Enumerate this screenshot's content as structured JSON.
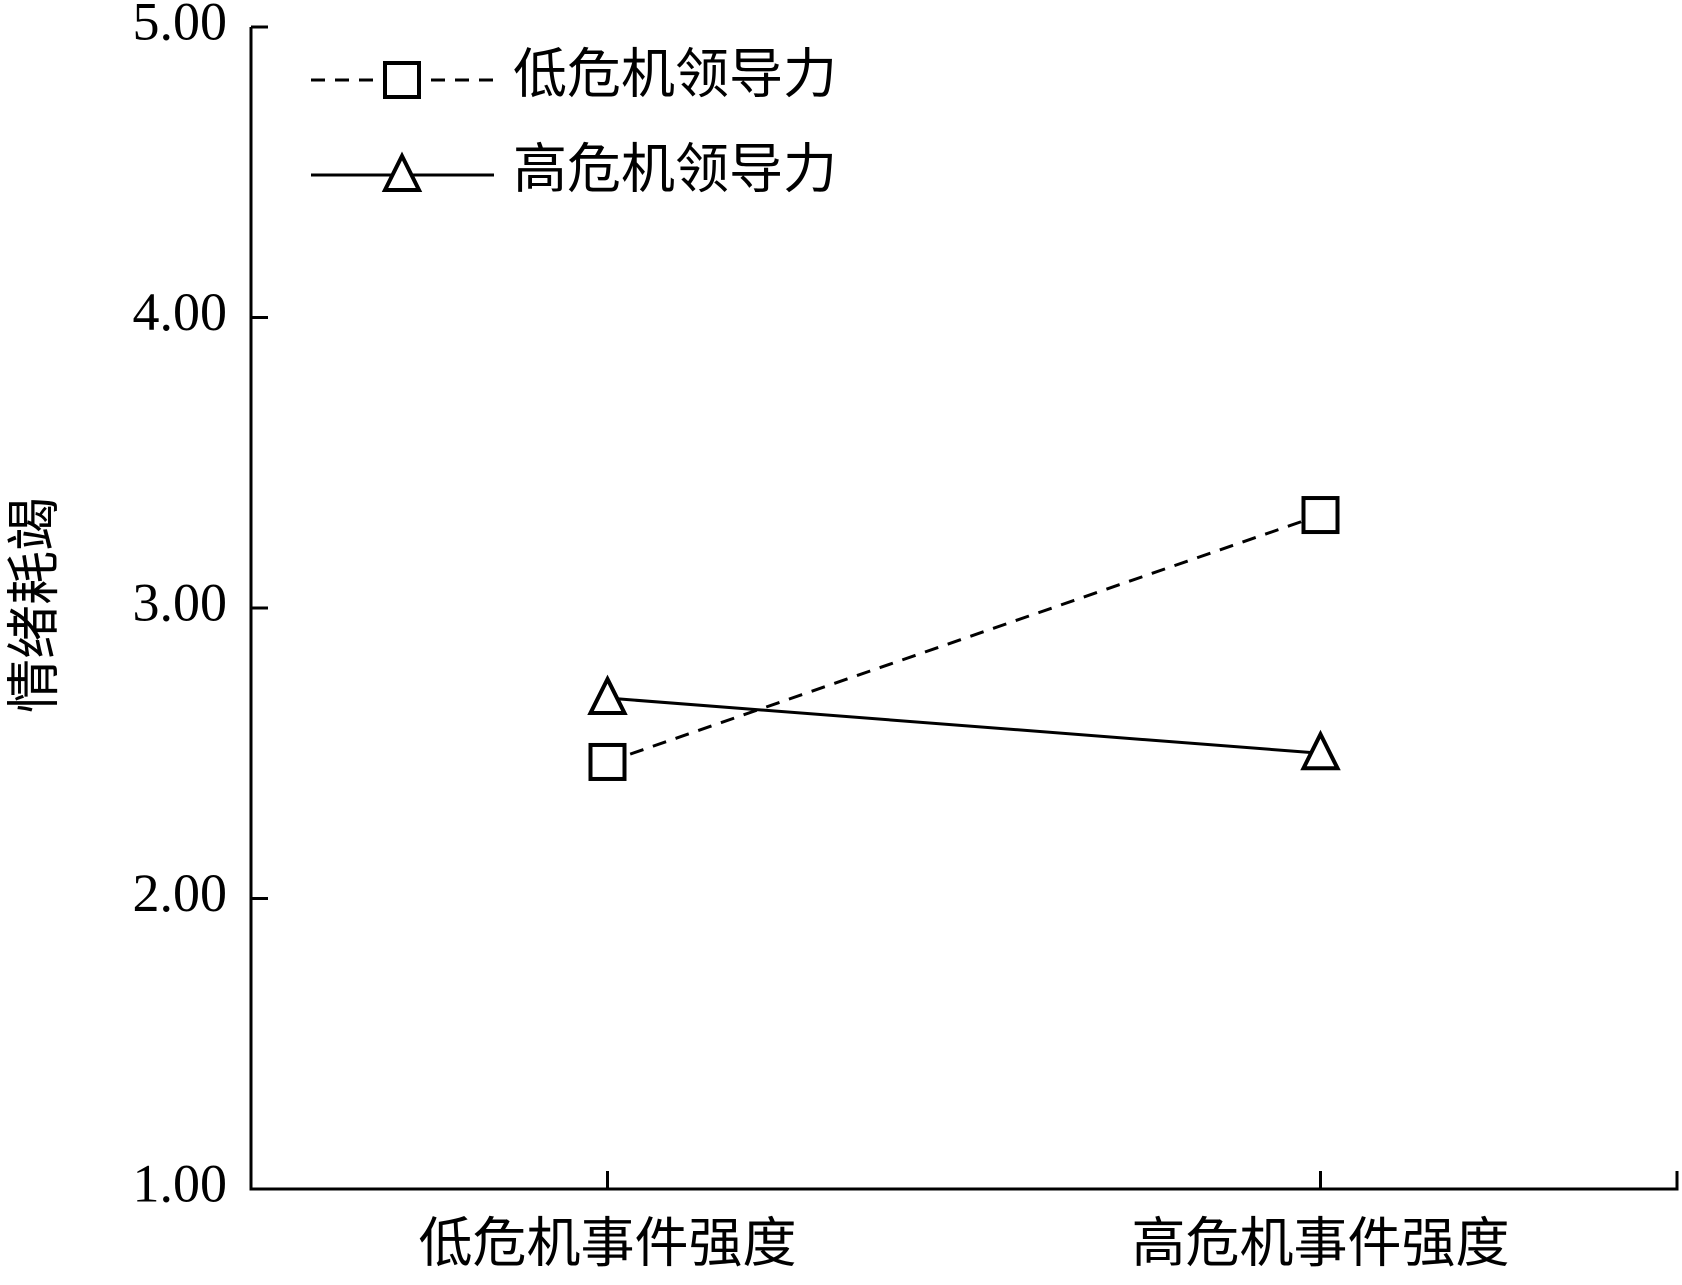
{
  "chart_data": {
    "type": "line",
    "y_label": "情绪耗竭",
    "categories": [
      "低危机事件强度",
      "高危机事件强度"
    ],
    "series": [
      {
        "name": "低危机领导力",
        "color": "#000000",
        "dash": "dashed",
        "marker": "square",
        "values": [
          2.47,
          3.32
        ]
      },
      {
        "name": "高危机领导力",
        "color": "#000000",
        "dash": "solid",
        "marker": "triangle",
        "values": [
          2.69,
          2.5
        ]
      }
    ],
    "ylim": [
      1,
      5
    ],
    "yticks": [
      {
        "value": 1,
        "label": "1.00"
      },
      {
        "value": 2,
        "label": "2.00"
      },
      {
        "value": 3,
        "label": "3.00"
      },
      {
        "value": 4,
        "label": "4.00"
      },
      {
        "value": 5,
        "label": "5.00"
      }
    ],
    "grid": false,
    "legend": "upper left"
  }
}
